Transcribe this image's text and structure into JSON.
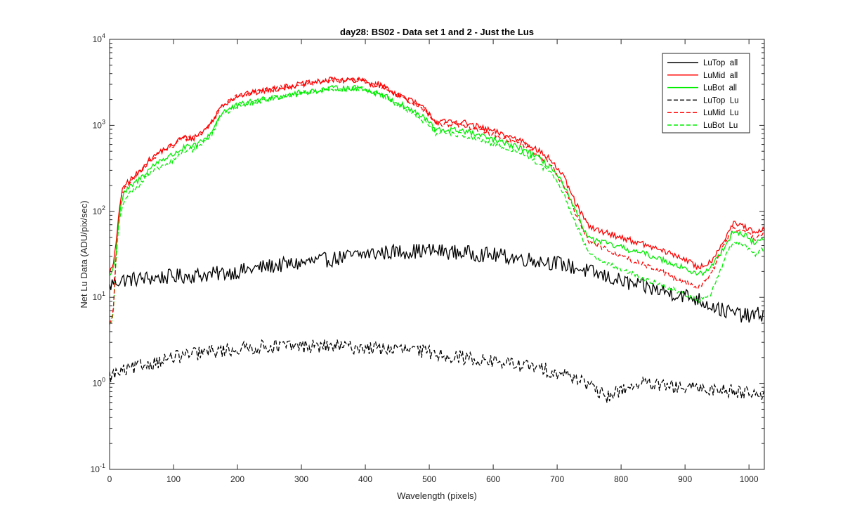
{
  "chart_data": {
    "type": "line",
    "title": "day28: BS02 - Data set 1 and 2 - Just the Lus",
    "xlabel": "Wavelength (pixels)",
    "ylabel": "Net Lu Data (ADU/pix/sec)",
    "xscale": "linear",
    "yscale": "log",
    "xlim": [
      0,
      1024
    ],
    "ylim": [
      0.1,
      10000
    ],
    "xticks": [
      0,
      100,
      200,
      300,
      400,
      500,
      600,
      700,
      800,
      900,
      1000
    ],
    "xtick_labels": [
      "0",
      "100",
      "200",
      "300",
      "400",
      "500",
      "600",
      "700",
      "800",
      "900",
      "1000"
    ],
    "yticks": [
      0.1,
      1,
      10,
      100,
      1000,
      10000
    ],
    "ytick_labels": [
      {
        "base": "10",
        "exp": "-1"
      },
      {
        "base": "10",
        "exp": "0"
      },
      {
        "base": "10",
        "exp": "1"
      },
      {
        "base": "10",
        "exp": "2"
      },
      {
        "base": "10",
        "exp": "3"
      },
      {
        "base": "10",
        "exp": "4"
      }
    ],
    "grid": false,
    "legend_position": "top-right",
    "series": [
      {
        "name": "LuTop  all",
        "color": "#000000",
        "style": "solid",
        "noise": 0.09,
        "x": [
          0,
          5,
          20,
          50,
          80,
          100,
          130,
          160,
          200,
          250,
          300,
          350,
          400,
          450,
          500,
          550,
          600,
          650,
          700,
          740,
          780,
          820,
          860,
          900,
          920,
          960,
          1000,
          1024
        ],
        "y": [
          13,
          15,
          16,
          16.5,
          17,
          17.5,
          18,
          18.5,
          20,
          23,
          25,
          28,
          32,
          34,
          35,
          33,
          31,
          28,
          25,
          21,
          17,
          14,
          12,
          10.5,
          9.5,
          7,
          6,
          6.5
        ]
      },
      {
        "name": "LuMid  all",
        "color": "#ff0000",
        "style": "solid",
        "noise": 0.035,
        "x": [
          0,
          5,
          10,
          15,
          20,
          25,
          35,
          45,
          60,
          80,
          90,
          100,
          110,
          120,
          130,
          140,
          150,
          160,
          175,
          200,
          250,
          300,
          350,
          400,
          410,
          420,
          430,
          440,
          480,
          500,
          510,
          550,
          600,
          650,
          690,
          710,
          730,
          750,
          800,
          850,
          900,
          920,
          940,
          960,
          975,
          990,
          1010,
          1024
        ],
        "y": [
          20,
          22,
          40,
          110,
          170,
          210,
          240,
          280,
          380,
          500,
          540,
          600,
          700,
          720,
          700,
          800,
          900,
          1100,
          1700,
          2200,
          2600,
          3000,
          3400,
          3300,
          3000,
          3000,
          2800,
          2500,
          1800,
          1400,
          1100,
          1100,
          850,
          650,
          400,
          250,
          120,
          65,
          50,
          38,
          28,
          22,
          26,
          45,
          72,
          68,
          55,
          62
        ]
      },
      {
        "name": "LuBot  all",
        "color": "#00ee00",
        "style": "solid",
        "noise": 0.035,
        "x": [
          0,
          5,
          10,
          15,
          20,
          25,
          35,
          45,
          60,
          80,
          90,
          100,
          110,
          120,
          130,
          140,
          150,
          160,
          175,
          200,
          250,
          300,
          350,
          400,
          410,
          420,
          430,
          440,
          480,
          500,
          510,
          550,
          600,
          650,
          690,
          710,
          730,
          750,
          800,
          850,
          900,
          920,
          940,
          960,
          975,
          990,
          1010,
          1024
        ],
        "y": [
          18,
          20,
          33,
          90,
          140,
          170,
          200,
          230,
          300,
          400,
          420,
          460,
          520,
          560,
          560,
          620,
          700,
          850,
          1400,
          1700,
          2100,
          2400,
          2700,
          2700,
          2400,
          2400,
          2200,
          2000,
          1400,
          1100,
          880,
          880,
          680,
          520,
          330,
          200,
          95,
          48,
          38,
          30,
          22,
          18,
          22,
          37,
          58,
          55,
          42,
          50
        ]
      },
      {
        "name": "LuTop  Lu",
        "color": "#000000",
        "style": "dashed",
        "noise": 0.08,
        "x": [
          0,
          10,
          50,
          100,
          150,
          200,
          250,
          300,
          350,
          400,
          450,
          500,
          550,
          600,
          650,
          700,
          740,
          760,
          780,
          800,
          830,
          850,
          900,
          950,
          1000,
          1024
        ],
        "y": [
          1.2,
          1.3,
          1.6,
          2.0,
          2.3,
          2.5,
          2.7,
          2.7,
          2.7,
          2.6,
          2.5,
          2.3,
          2.0,
          1.8,
          1.6,
          1.35,
          1.1,
          0.8,
          0.7,
          0.85,
          1.0,
          0.95,
          0.88,
          0.85,
          0.8,
          0.75
        ]
      },
      {
        "name": "LuMid  Lu",
        "color": "#ff0000",
        "style": "dashed",
        "noise": 0.03,
        "x": [
          0,
          5,
          10,
          15,
          20,
          25,
          35,
          45,
          60,
          80,
          90,
          100,
          110,
          120,
          130,
          140,
          150,
          160,
          175,
          200,
          250,
          300,
          350,
          400,
          410,
          420,
          430,
          440,
          480,
          500,
          510,
          550,
          600,
          650,
          690,
          710,
          730,
          750,
          800,
          850,
          900,
          920,
          940,
          960,
          975,
          990,
          1010,
          1024
        ],
        "y": [
          5,
          6,
          30,
          100,
          160,
          200,
          230,
          270,
          370,
          490,
          530,
          590,
          690,
          710,
          690,
          790,
          890,
          1080,
          1680,
          2180,
          2580,
          2980,
          3380,
          3280,
          2980,
          2980,
          2780,
          2480,
          1750,
          1330,
          1050,
          1020,
          780,
          590,
          350,
          200,
          90,
          45,
          30,
          22,
          15,
          13,
          18,
          40,
          62,
          58,
          48,
          55
        ]
      },
      {
        "name": "LuBot  Lu",
        "color": "#00ee00",
        "style": "dashed",
        "noise": 0.03,
        "x": [
          0,
          5,
          10,
          15,
          20,
          25,
          35,
          45,
          60,
          80,
          90,
          100,
          110,
          120,
          130,
          140,
          150,
          160,
          175,
          200,
          250,
          300,
          350,
          400,
          410,
          420,
          430,
          440,
          480,
          500,
          510,
          550,
          600,
          650,
          690,
          710,
          730,
          750,
          800,
          850,
          900,
          920,
          940,
          960,
          975,
          990,
          1010,
          1024
        ],
        "y": [
          5,
          5.5,
          25,
          80,
          120,
          150,
          170,
          200,
          260,
          330,
          350,
          390,
          460,
          520,
          520,
          580,
          650,
          800,
          1350,
          1650,
          2050,
          2350,
          2650,
          2650,
          2350,
          2350,
          2150,
          1950,
          1300,
          1000,
          800,
          780,
          600,
          460,
          280,
          160,
          70,
          32,
          21,
          15,
          11,
          9,
          11,
          26,
          45,
          42,
          32,
          38
        ]
      }
    ]
  }
}
